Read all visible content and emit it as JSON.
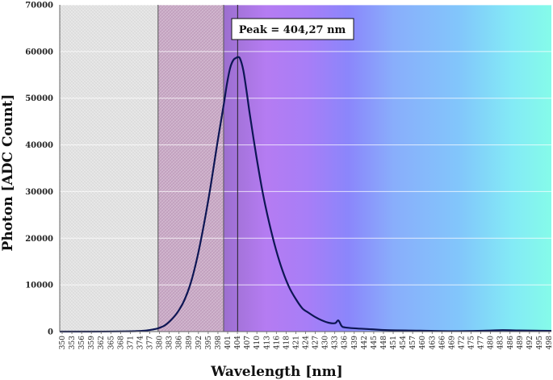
{
  "chart_data": {
    "type": "line",
    "title": "",
    "xlabel": "Wavelength [nm]",
    "ylabel": "Photon [ADC Count]",
    "xlim": [
      350,
      500
    ],
    "ylim": [
      0,
      70000
    ],
    "y_ticks": [
      "0",
      "10000",
      "20000",
      "30000",
      "40000",
      "50000",
      "60000",
      "70000"
    ],
    "x_ticks": [
      "350",
      "353",
      "356",
      "359",
      "362",
      "365",
      "368",
      "371",
      "374",
      "377",
      "380",
      "383",
      "386",
      "389",
      "392",
      "395",
      "398",
      "401",
      "404",
      "407",
      "410",
      "413",
      "416",
      "418",
      "421",
      "424",
      "427",
      "430",
      "433",
      "436",
      "439",
      "442",
      "445",
      "448",
      "451",
      "454",
      "457",
      "460",
      "463",
      "466",
      "469",
      "472",
      "475",
      "477",
      "480",
      "483",
      "486",
      "489",
      "492",
      "495",
      "498"
    ],
    "grid": "horizontal",
    "legend": "none",
    "line_color": "#0d1654",
    "peak_annotation": "Peak = 404,27 nm",
    "peak_x": 404.27,
    "vertical_markers": [
      380,
      400,
      404.27
    ],
    "background_bands": [
      {
        "from": 350,
        "to": 380,
        "color": "#e3e3e3",
        "hatched": true
      },
      {
        "from": 380,
        "to": 400,
        "color": "#c7a6c4",
        "hatched": true
      },
      {
        "from": 400,
        "to": 500,
        "color": "spectrum"
      }
    ],
    "series": [
      {
        "x": [
          350,
          360,
          370,
          375,
          378,
          380,
          382,
          384,
          386,
          388,
          390,
          392,
          394,
          396,
          398,
          400,
          401,
          402,
          403,
          404,
          404.27,
          405,
          406,
          407,
          408,
          410,
          412,
          414,
          416,
          418,
          420,
          422,
          424,
          426,
          428,
          430,
          432,
          434,
          435,
          436,
          437,
          440,
          445,
          450,
          460,
          470,
          480,
          485,
          490,
          495,
          500
        ],
        "y": [
          0,
          0,
          50,
          150,
          400,
          700,
          1300,
          2500,
          4200,
          6700,
          10500,
          16000,
          23000,
          31000,
          40000,
          48500,
          53000,
          56500,
          58200,
          58700,
          58800,
          58500,
          56000,
          51500,
          46500,
          37500,
          29500,
          23000,
          17500,
          13000,
          9500,
          7000,
          5000,
          4000,
          3100,
          2400,
          1900,
          1800,
          2400,
          1200,
          900,
          700,
          500,
          300,
          200,
          100,
          200,
          300,
          250,
          200,
          150
        ]
      }
    ]
  }
}
